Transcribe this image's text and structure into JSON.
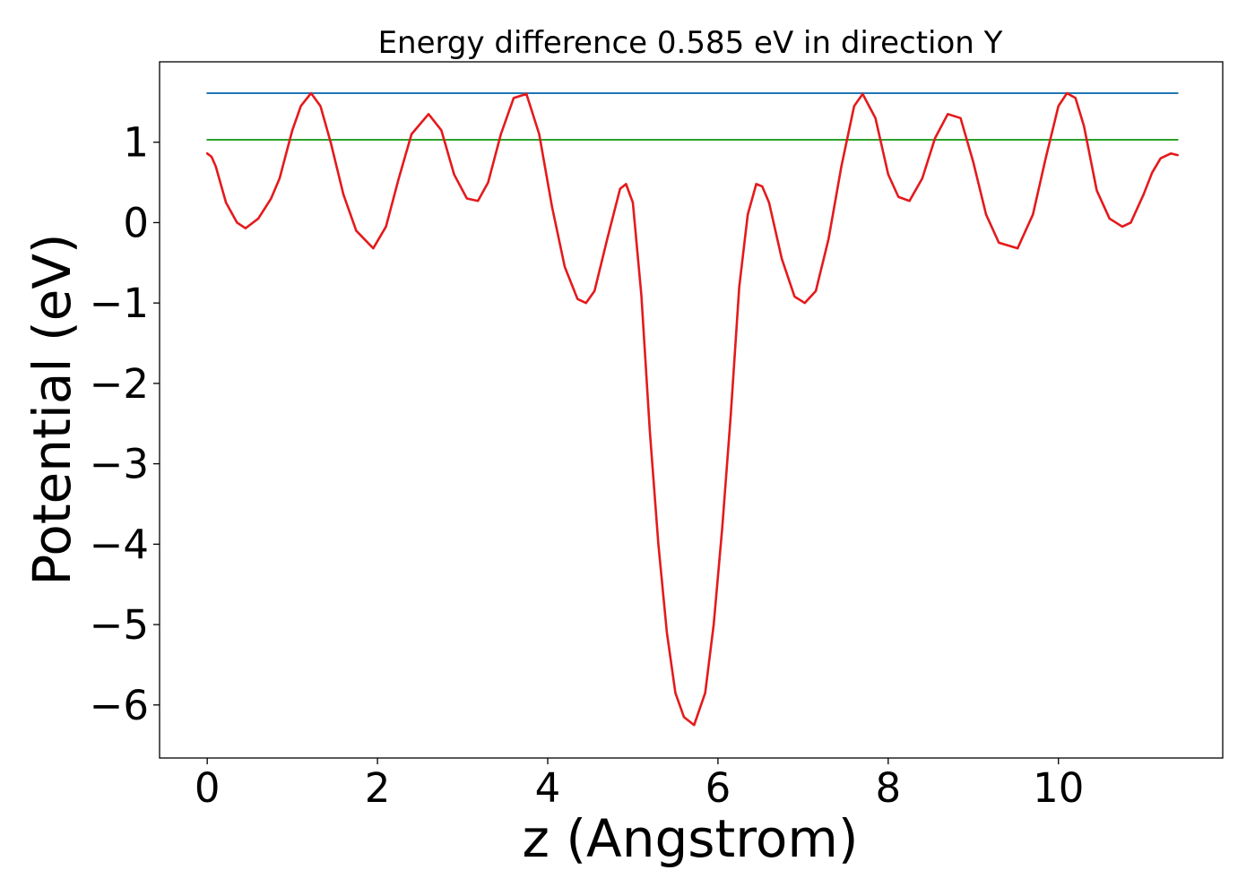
{
  "chart_data": {
    "type": "line",
    "title": "Energy difference 0.585 eV in direction Y",
    "xlabel": "z (Angstrom)",
    "ylabel": "Potential (eV)",
    "xlim": [
      -0.56,
      11.93
    ],
    "ylim": [
      -6.66,
      2.0
    ],
    "x_ticks": [
      0,
      2,
      4,
      6,
      8,
      10
    ],
    "x_tick_labels": [
      "0",
      "2",
      "4",
      "6",
      "8",
      "10"
    ],
    "y_ticks": [
      1,
      0,
      -1,
      -2,
      -3,
      -4,
      -5,
      -6
    ],
    "y_tick_labels": [
      "1",
      "0",
      "−1",
      "−2",
      "−3",
      "−4",
      "−5",
      "−6"
    ],
    "grid": false,
    "series": [
      {
        "color": "#1f77b4",
        "x": [
          0,
          11.4
        ],
        "y": [
          1.61,
          1.61
        ]
      },
      {
        "color": "#2ca02c",
        "x": [
          0,
          11.4
        ],
        "y": [
          1.03,
          1.03
        ]
      },
      {
        "color": "#e41a1c",
        "x": [
          0,
          0.05,
          0.1,
          0.22,
          0.35,
          0.45,
          0.6,
          0.75,
          0.85,
          1.0,
          1.1,
          1.22,
          1.33,
          1.45,
          1.6,
          1.75,
          1.95,
          2.1,
          2.25,
          2.4,
          2.6,
          2.75,
          2.9,
          3.05,
          3.18,
          3.3,
          3.45,
          3.6,
          3.75,
          3.9,
          4.05,
          4.2,
          4.35,
          4.45,
          4.55,
          4.7,
          4.85,
          4.92,
          5.0,
          5.1,
          5.2,
          5.3,
          5.4,
          5.5,
          5.6,
          5.72,
          5.85,
          5.95,
          6.05,
          6.15,
          6.25,
          6.35,
          6.45,
          6.52,
          6.6,
          6.75,
          6.9,
          7.02,
          7.15,
          7.3,
          7.45,
          7.6,
          7.7,
          7.85,
          8.0,
          8.12,
          8.25,
          8.4,
          8.55,
          8.7,
          8.85,
          9.0,
          9.15,
          9.3,
          9.52,
          9.7,
          9.85,
          10.0,
          10.1,
          10.2,
          10.3,
          10.45,
          10.6,
          10.75,
          10.85,
          11.0,
          11.1,
          11.2,
          11.32,
          11.4
        ],
        "y": [
          0.86,
          0.82,
          0.7,
          0.25,
          0.0,
          -0.07,
          0.05,
          0.3,
          0.55,
          1.15,
          1.45,
          1.61,
          1.45,
          1.0,
          0.35,
          -0.1,
          -0.32,
          -0.05,
          0.55,
          1.1,
          1.35,
          1.15,
          0.6,
          0.3,
          0.27,
          0.5,
          1.1,
          1.55,
          1.6,
          1.1,
          0.2,
          -0.55,
          -0.95,
          -1.0,
          -0.85,
          -0.2,
          0.42,
          0.48,
          0.25,
          -0.9,
          -2.6,
          -4.0,
          -5.1,
          -5.85,
          -6.15,
          -6.25,
          -5.85,
          -5.0,
          -3.8,
          -2.4,
          -0.8,
          0.1,
          0.48,
          0.45,
          0.25,
          -0.45,
          -0.92,
          -1.0,
          -0.85,
          -0.2,
          0.7,
          1.45,
          1.6,
          1.3,
          0.6,
          0.32,
          0.27,
          0.55,
          1.05,
          1.35,
          1.3,
          0.75,
          0.1,
          -0.25,
          -0.32,
          0.1,
          0.8,
          1.45,
          1.61,
          1.55,
          1.2,
          0.4,
          0.05,
          -0.05,
          0.0,
          0.35,
          0.62,
          0.8,
          0.86,
          0.84
        ]
      }
    ]
  }
}
